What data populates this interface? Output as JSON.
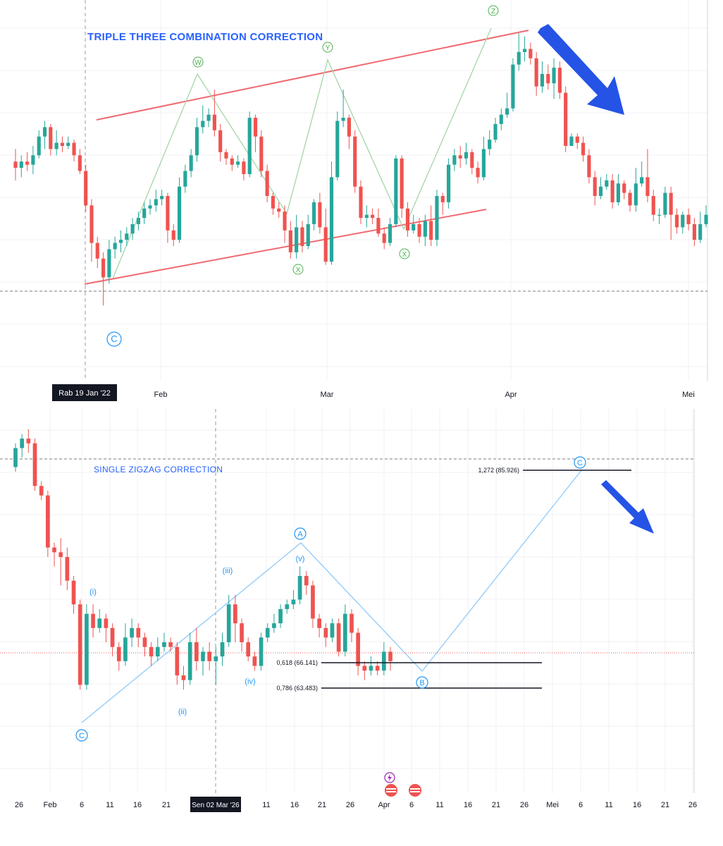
{
  "colors": {
    "up": "#26a69a",
    "down": "#ef5350",
    "channel": "#f06a70",
    "wave_line_top": "#a5d6a7",
    "wave_line_bottom": "#90caf9",
    "label_green": "#4caf50",
    "label_blue": "#2196f3",
    "arrow": "#2453e6",
    "accent_text": "#2962ff"
  },
  "top_panel": {
    "title": "TRIPLE THREE COMBINATION CORRECTION",
    "crosshair_date": "Rab 19 Jan '22",
    "x_labels": [
      "Feb",
      "Mar",
      "Apr",
      "Mei"
    ],
    "wave_labels": [
      "W",
      "X",
      "Y",
      "X",
      "Z"
    ],
    "start_label": "C"
  },
  "bottom_panel": {
    "title": "SINGLE ZIGZAG CORRECTION",
    "crosshair_date": "Sen 02 Mar '26",
    "x_labels": [
      "26",
      "Feb",
      "6",
      "11",
      "16",
      "21",
      "11",
      "16",
      "21",
      "26",
      "Apr",
      "6",
      "11",
      "16",
      "21",
      "26",
      "Mei",
      "6",
      "11",
      "16",
      "21",
      "26"
    ],
    "wave_labels": [
      "C",
      "A",
      "B",
      "C"
    ],
    "sub_wave_labels": [
      "(i)",
      "(ii)",
      "(iii)",
      "(iv)",
      "(v)"
    ],
    "fib_levels": [
      {
        "label": "1,272 (85.926)"
      },
      {
        "label": "0,618 (66.141)"
      },
      {
        "label": "0,786 (63.483)"
      }
    ]
  },
  "chart_data": [
    {
      "type": "candlestick",
      "title": "TRIPLE THREE COMBINATION CORRECTION",
      "x_axis": [
        "Feb",
        "Mar",
        "Apr",
        "Mei"
      ],
      "y_axis_labels": "none",
      "y_scale": "price (unlabeled, relative 0-100)",
      "candles": [
        [
          62,
          60,
          66,
          56
        ],
        [
          60,
          62,
          64,
          57
        ],
        [
          62,
          61,
          65,
          59
        ],
        [
          61,
          64,
          67,
          58
        ],
        [
          64,
          70,
          72,
          63
        ],
        [
          70,
          73,
          75,
          66
        ],
        [
          73,
          66,
          74,
          64
        ],
        [
          66,
          68,
          72,
          64
        ],
        [
          68,
          67,
          70,
          65
        ],
        [
          67,
          68,
          70,
          66
        ],
        [
          68,
          64,
          69,
          62
        ],
        [
          64,
          59,
          66,
          58
        ],
        [
          59,
          48,
          61,
          46
        ],
        [
          48,
          36,
          50,
          30
        ],
        [
          36,
          31,
          38,
          28
        ],
        [
          31,
          25,
          33,
          16
        ],
        [
          25,
          34,
          37,
          23
        ],
        [
          34,
          36,
          38,
          31
        ],
        [
          36,
          37,
          40,
          33
        ],
        [
          37,
          39,
          41,
          35
        ],
        [
          39,
          42,
          44,
          37
        ],
        [
          42,
          44,
          46,
          40
        ],
        [
          44,
          47,
          49,
          42
        ],
        [
          47,
          48,
          50,
          45
        ],
        [
          48,
          50,
          53,
          46
        ],
        [
          50,
          51,
          53,
          48
        ],
        [
          51,
          40,
          52,
          36
        ],
        [
          40,
          37,
          42,
          35
        ],
        [
          37,
          54,
          57,
          36
        ],
        [
          54,
          59,
          61,
          52
        ],
        [
          59,
          64,
          66,
          57
        ],
        [
          64,
          73,
          76,
          62
        ],
        [
          73,
          75,
          80,
          71
        ],
        [
          75,
          77,
          79,
          73
        ],
        [
          77,
          72,
          85,
          70
        ],
        [
          72,
          65,
          74,
          62
        ],
        [
          65,
          63,
          66,
          61
        ],
        [
          63,
          61,
          64,
          59
        ],
        [
          61,
          62,
          64,
          60
        ],
        [
          62,
          58,
          63,
          56
        ],
        [
          58,
          76,
          78,
          57
        ],
        [
          76,
          70,
          77,
          65
        ],
        [
          70,
          59,
          72,
          57
        ],
        [
          59,
          51,
          61,
          49
        ],
        [
          51,
          47,
          52,
          45
        ],
        [
          47,
          46,
          49,
          44
        ],
        [
          46,
          40,
          48,
          36
        ],
        [
          40,
          33,
          43,
          31
        ],
        [
          33,
          41,
          45,
          31
        ],
        [
          41,
          35,
          43,
          33
        ],
        [
          35,
          42,
          45,
          34
        ],
        [
          42,
          49,
          50,
          40
        ],
        [
          49,
          41,
          52,
          39
        ],
        [
          41,
          30,
          47,
          29
        ],
        [
          30,
          57,
          62,
          29
        ],
        [
          57,
          75,
          78,
          56
        ],
        [
          75,
          76,
          85,
          73
        ],
        [
          76,
          70,
          77,
          66
        ],
        [
          70,
          54,
          72,
          52
        ],
        [
          54,
          44,
          56,
          42
        ],
        [
          44,
          45,
          48,
          41
        ],
        [
          45,
          44,
          47,
          42
        ],
        [
          44,
          39,
          47,
          38
        ],
        [
          39,
          36,
          41,
          34
        ],
        [
          36,
          42,
          44,
          35
        ],
        [
          42,
          63,
          64,
          41
        ],
        [
          63,
          47,
          64,
          44
        ],
        [
          47,
          40,
          49,
          38
        ],
        [
          40,
          42,
          45,
          39
        ],
        [
          42,
          38,
          44,
          36
        ],
        [
          38,
          43,
          45,
          35
        ],
        [
          43,
          37,
          48,
          35
        ],
        [
          37,
          51,
          53,
          35
        ],
        [
          51,
          49,
          52,
          45
        ],
        [
          49,
          61,
          63,
          47
        ],
        [
          61,
          64,
          66,
          59
        ],
        [
          64,
          63,
          67,
          60
        ],
        [
          63,
          65,
          68,
          61
        ],
        [
          65,
          60,
          66,
          58
        ],
        [
          60,
          57,
          62,
          55
        ],
        [
          57,
          66,
          70,
          56
        ],
        [
          66,
          69,
          72,
          64
        ],
        [
          69,
          74,
          76,
          68
        ],
        [
          74,
          77,
          79,
          72
        ],
        [
          77,
          79,
          84,
          76
        ],
        [
          79,
          93,
          95,
          78
        ],
        [
          93,
          97,
          103,
          91
        ],
        [
          97,
          98,
          102,
          94
        ],
        [
          98,
          95,
          100,
          93
        ],
        [
          95,
          86,
          97,
          83
        ],
        [
          86,
          90,
          94,
          84
        ],
        [
          90,
          87,
          93,
          85
        ],
        [
          87,
          92,
          95,
          82
        ],
        [
          92,
          84,
          94,
          82
        ],
        [
          84,
          67,
          86,
          65
        ],
        [
          67,
          70,
          71,
          67
        ],
        [
          70,
          68,
          71,
          66
        ],
        [
          68,
          64,
          70,
          62
        ],
        [
          64,
          57,
          66,
          55
        ],
        [
          57,
          51,
          59,
          48
        ],
        [
          51,
          54,
          57,
          50
        ],
        [
          54,
          56,
          58,
          53
        ],
        [
          56,
          49,
          58,
          47
        ],
        [
          49,
          55,
          58,
          48
        ],
        [
          55,
          52,
          56,
          50
        ],
        [
          52,
          48,
          53,
          46
        ],
        [
          48,
          55,
          60,
          46
        ],
        [
          55,
          57,
          62,
          54
        ],
        [
          57,
          51,
          66,
          49
        ],
        [
          51,
          45,
          53,
          43
        ],
        [
          45,
          45,
          47,
          42
        ],
        [
          45,
          52,
          54,
          44
        ],
        [
          52,
          45,
          54,
          37
        ],
        [
          45,
          41,
          47,
          39
        ],
        [
          41,
          45,
          46,
          39
        ],
        [
          45,
          42,
          47,
          40
        ],
        [
          42,
          37,
          44,
          35
        ],
        [
          37,
          42,
          46,
          36
        ],
        [
          42,
          45,
          48,
          41
        ]
      ]
    },
    {
      "type": "candlestick",
      "title": "SINGLE ZIGZAG CORRECTION",
      "x_axis": [
        "26",
        "Feb",
        "6",
        "11",
        "16",
        "21",
        "11",
        "16",
        "21",
        "26",
        "Apr",
        "6",
        "11",
        "16",
        "21",
        "26",
        "Mei",
        "6",
        "11",
        "16",
        "21",
        "26"
      ],
      "crosshair": "Sen 02 Mar '26",
      "y_scale": "price",
      "fibonacci": [
        {
          "ratio": "1,272",
          "price": 85.926
        },
        {
          "ratio": "0,618",
          "price": 66.141
        },
        {
          "ratio": "0,786",
          "price": 63.483
        }
      ],
      "candles": [
        [
          95,
          99,
          100,
          94
        ],
        [
          99,
          101,
          102,
          97
        ],
        [
          101,
          100,
          103,
          98
        ],
        [
          100,
          91,
          101,
          90
        ],
        [
          91,
          89,
          92,
          88
        ],
        [
          89,
          78,
          90,
          76
        ],
        [
          78,
          77,
          79,
          74
        ],
        [
          77,
          76,
          80,
          70
        ],
        [
          76,
          71,
          78,
          69
        ],
        [
          71,
          66,
          72,
          64
        ],
        [
          66,
          49,
          67,
          48
        ],
        [
          49,
          64,
          66,
          48
        ],
        [
          64,
          61,
          66,
          59
        ],
        [
          61,
          63,
          65,
          60
        ],
        [
          63,
          61,
          64,
          58
        ],
        [
          61,
          57,
          62,
          55
        ],
        [
          57,
          54,
          58,
          52
        ],
        [
          54,
          59,
          62,
          53
        ],
        [
          59,
          61,
          63,
          57
        ],
        [
          61,
          59,
          62,
          57
        ],
        [
          59,
          57,
          60,
          55
        ],
        [
          57,
          55,
          58,
          53
        ],
        [
          55,
          57,
          59,
          54
        ],
        [
          57,
          58,
          60,
          56
        ],
        [
          58,
          57,
          59,
          56
        ],
        [
          57,
          51,
          58,
          49
        ],
        [
          51,
          50,
          53,
          48
        ],
        [
          50,
          58,
          60,
          49
        ],
        [
          58,
          54,
          61,
          52
        ],
        [
          54,
          56,
          57,
          51
        ],
        [
          56,
          54,
          58,
          52
        ],
        [
          54,
          55,
          57,
          49
        ],
        [
          55,
          58,
          60,
          53
        ],
        [
          58,
          66,
          68,
          57
        ],
        [
          66,
          62,
          68,
          58
        ],
        [
          62,
          58,
          63,
          56
        ],
        [
          58,
          55,
          59,
          54
        ],
        [
          55,
          53,
          56,
          52
        ],
        [
          53,
          59,
          60,
          52
        ],
        [
          59,
          61,
          62,
          58
        ],
        [
          61,
          62,
          64,
          60
        ],
        [
          62,
          65,
          66,
          61
        ],
        [
          65,
          66,
          67,
          64
        ],
        [
          66,
          67,
          69,
          65
        ],
        [
          67,
          72,
          74,
          66
        ],
        [
          72,
          70,
          73,
          68
        ],
        [
          70,
          63,
          71,
          61
        ],
        [
          63,
          61,
          64,
          59
        ],
        [
          61,
          59,
          62,
          57
        ],
        [
          59,
          62,
          63,
          58
        ],
        [
          62,
          56,
          63,
          55
        ],
        [
          56,
          64,
          66,
          55
        ],
        [
          64,
          60,
          65,
          58
        ],
        [
          60,
          53,
          61,
          51
        ],
        [
          53,
          52,
          54,
          50
        ],
        [
          52,
          53,
          55,
          51
        ],
        [
          53,
          52,
          54,
          51
        ],
        [
          52,
          56,
          58,
          51
        ],
        [
          56,
          54,
          57,
          52
        ]
      ]
    }
  ]
}
